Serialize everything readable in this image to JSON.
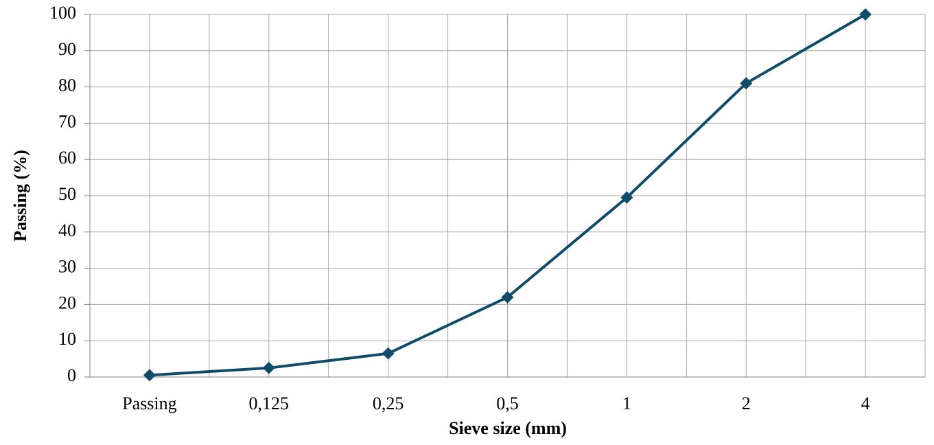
{
  "chart_data": {
    "type": "line",
    "x_label": "Sieve size (mm)",
    "y_label": "Passing (%)",
    "categories": [
      "Passing",
      "0,125",
      "0,25",
      "0,5",
      "1",
      "2",
      "4"
    ],
    "values": [
      0.5,
      2.5,
      6.5,
      22,
      49.5,
      81,
      100
    ],
    "color": "#0f4c6a",
    "ylim": [
      0,
      100
    ],
    "yticks": [
      0,
      10,
      20,
      30,
      40,
      50,
      60,
      70,
      80,
      90,
      100
    ],
    "grid": true
  }
}
